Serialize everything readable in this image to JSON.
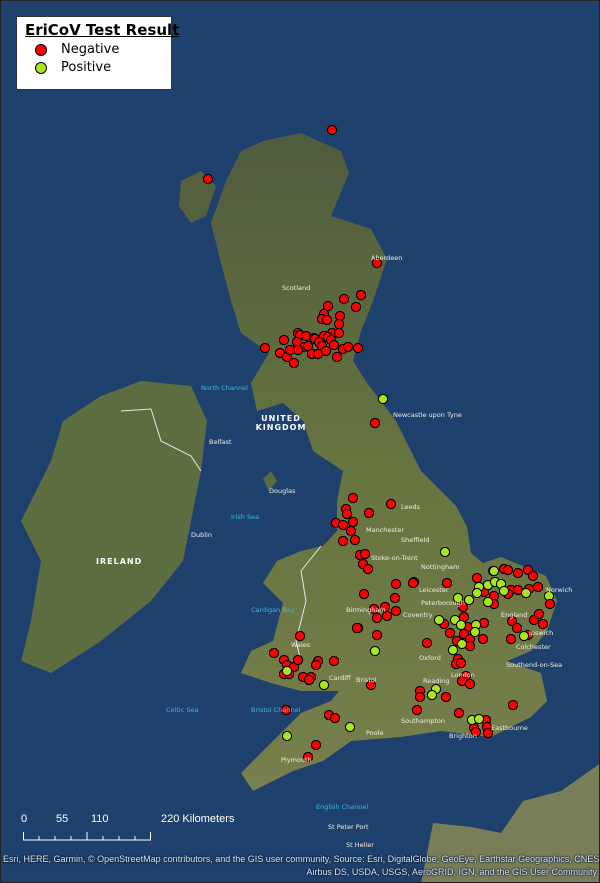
{
  "legend": {
    "title": "EriCoV Test Result",
    "items": [
      {
        "label": "Negative",
        "color": "#ff0000"
      },
      {
        "label": "Positive",
        "color": "#a8e61d"
      }
    ]
  },
  "scale_bar": {
    "ticks": [
      "0",
      "55",
      "110",
      "220 Kilometers"
    ]
  },
  "attribution": {
    "line1": "Esri, HERE, Garmin, © OpenStreetMap contributors, and the GIS user community,  Source: Esri, DigitalGlobe, GeoEye, Earthstar Geographics, CNES/",
    "line2": "Airbus DS, USDA, USGS, AeroGRID, IGN, and the GIS User Community"
  },
  "countries": {
    "uk": "UNITED KINGDOM",
    "ireland": "IRELAND"
  },
  "places": [
    "Scotland",
    "Aberdeen",
    "Newcastle upon Tyne",
    "Belfast",
    "Dublin",
    "Leeds",
    "Manchester",
    "Sheffield",
    "Nottingham",
    "Stoke-on-Trent",
    "Leicester",
    "Birmingham",
    "Coventry",
    "Peterborough",
    "Norwich",
    "England",
    "Ipswich",
    "Colchester",
    "Oxford",
    "Reading",
    "London",
    "Southend-on-Sea",
    "Wales",
    "Cardiff",
    "Bristol",
    "Southampton",
    "Brighton",
    "Eastbourne",
    "Plymouth",
    "Poole",
    "St Peter Port",
    "St Helier",
    "Douglas"
  ],
  "seas": [
    "Irish Sea",
    "Bristol Channel",
    "Cardigan Bay",
    "English Channel",
    "North Channel",
    "Celtic Sea"
  ],
  "colors": {
    "sea": "#1d416c",
    "land": "#5f6e45",
    "negative": "#ff0000",
    "positive": "#a8e61d"
  }
}
